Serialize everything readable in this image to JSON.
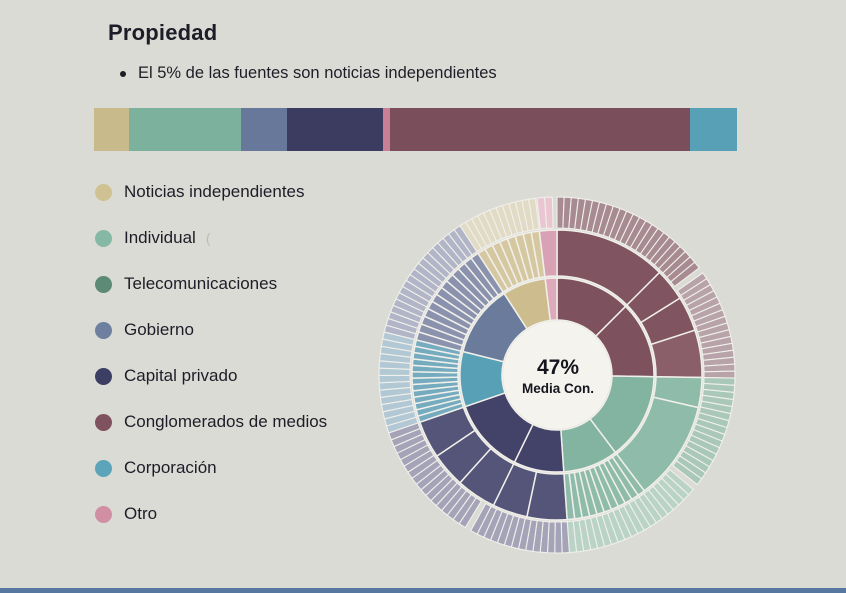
{
  "background": "#dbdbd6",
  "footer_bar_color": "#5577a0",
  "header": {
    "title": "Propiedad",
    "bullet": "El 5% de las fuentes son noticias independientes"
  },
  "legend": {
    "items": [
      {
        "label": "Noticias independientes",
        "color": "#cfc191"
      },
      {
        "label": "Individual",
        "color": "#85b9a5",
        "suffix": "("
      },
      {
        "label": "Telecomunicaciones",
        "color": "#5d8977"
      },
      {
        "label": "Gobierno",
        "color": "#6e80a0"
      },
      {
        "label": "Capital privado",
        "color": "#3d3e64"
      },
      {
        "label": "Conglomerados de medios",
        "color": "#7f525f"
      },
      {
        "label": "Corporación",
        "color": "#5ca4b9"
      },
      {
        "label": "Otro",
        "color": "#d18fa3"
      }
    ]
  },
  "chart_data": [
    {
      "type": "bar",
      "variant": "stacked-horizontal",
      "title": "Propiedad — distribución de fuentes por tipo de propiedad",
      "xlim": [
        0,
        100
      ],
      "axis": "hidden",
      "categories": [
        "Noticias independientes",
        "Individual",
        "Gobierno",
        "Capital privado",
        "Otro",
        "Conglomerados de medios",
        "Corporación"
      ],
      "values": [
        5.4,
        17.4,
        7.2,
        14.9,
        1.1,
        46.7,
        7.3
      ],
      "colors": [
        "#c9ba8b",
        "#7cb19d",
        "#67789a",
        "#3b3c5f",
        "#c97f97",
        "#7b4e5b",
        "#57a0b5"
      ]
    },
    {
      "type": "pie",
      "variant": "sunburst",
      "center_value": "47%",
      "center_label": "Media Con.",
      "hole_color": "#f4f3ee",
      "stroke_color": "#f0efea",
      "radii": {
        "hole": 54,
        "inner": [
          55,
          97
        ],
        "middle": [
          99,
          145
        ],
        "outer": [
          147,
          178
        ]
      },
      "segments": [
        {
          "name": "conglomerados-de-medios",
          "label": "Conglomerados de medios",
          "from": 0,
          "to": 91,
          "inner": {
            "color": "#7d515e",
            "groups": [
              {
                "from": 0,
                "to": 45,
                "count": 1
              },
              {
                "from": 45,
                "to": 91,
                "count": 1
              }
            ]
          },
          "middle": {
            "color": "#805460",
            "groups": [
              {
                "from": 0,
                "to": 45,
                "count": 1
              },
              {
                "from": 45,
                "to": 58,
                "count": 1
              },
              {
                "from": 58,
                "to": 72,
                "count": 1
              },
              {
                "from": 72,
                "to": 91,
                "count": 1,
                "color": "#8a5f6a"
              }
            ]
          },
          "outer": {
            "color": "#a78a92",
            "groups": [
              {
                "from": 0,
                "to": 53,
                "count": 23
              },
              {
                "from": 55,
                "to": 91,
                "count": 16,
                "color": "#b7a3a9"
              }
            ]
          }
        },
        {
          "name": "individual",
          "label": "Individual",
          "from": 91,
          "to": 176,
          "inner": {
            "color": "#83b4a1",
            "groups": [
              {
                "from": 91,
                "to": 143,
                "count": 1
              },
              {
                "from": 143,
                "to": 176,
                "count": 1
              }
            ]
          },
          "middle": {
            "color": "#8ebbaa",
            "groups": [
              {
                "from": 91,
                "to": 103,
                "count": 1
              },
              {
                "from": 103,
                "to": 143,
                "count": 1
              },
              {
                "from": 143,
                "to": 176,
                "count": 11
              }
            ]
          },
          "outer": {
            "color": "#a9c8ba",
            "groups": [
              {
                "from": 91,
                "to": 128,
                "count": 16
              },
              {
                "from": 130,
                "to": 176,
                "count": 20,
                "color": "#bad3c7"
              }
            ]
          }
        },
        {
          "name": "capital-privado",
          "label": "Capital privado",
          "from": 176,
          "to": 251,
          "inner": {
            "color": "#434268",
            "groups": [
              {
                "from": 176,
                "to": 206,
                "count": 1
              },
              {
                "from": 206,
                "to": 251,
                "count": 1
              }
            ]
          },
          "middle": {
            "color": "#555479",
            "groups": [
              {
                "from": 176,
                "to": 192,
                "count": 1
              },
              {
                "from": 192,
                "to": 206,
                "count": 1
              },
              {
                "from": 206,
                "to": 222,
                "count": 1
              },
              {
                "from": 222,
                "to": 236,
                "count": 1
              },
              {
                "from": 236,
                "to": 251,
                "count": 1
              }
            ]
          },
          "outer": {
            "color": "#a5a3b7",
            "groups": [
              {
                "from": 176,
                "to": 209,
                "count": 14
              },
              {
                "from": 211,
                "to": 251,
                "count": 17
              }
            ]
          }
        },
        {
          "name": "corporacion",
          "label": "Corporación",
          "from": 251,
          "to": 284,
          "inner": {
            "color": "#58a0b6",
            "groups": [
              {
                "from": 251,
                "to": 284,
                "count": 1
              }
            ]
          },
          "middle": {
            "color": "#74abbf",
            "groups": [
              {
                "from": 251,
                "to": 284,
                "count": 13
              }
            ]
          },
          "outer": {
            "color": "#b2c9d5",
            "groups": [
              {
                "from": 251,
                "to": 284,
                "count": 14
              }
            ]
          }
        },
        {
          "name": "gobierno",
          "label": "Gobierno",
          "from": 284,
          "to": 327,
          "inner": {
            "color": "#6a7b9b",
            "groups": [
              {
                "from": 284,
                "to": 327,
                "count": 1
              }
            ]
          },
          "middle": {
            "color": "#8a92ae",
            "groups": [
              {
                "from": 284,
                "to": 327,
                "count": 13
              }
            ]
          },
          "outer": {
            "color": "#b1b5c7",
            "groups": [
              {
                "from": 284,
                "to": 327,
                "count": 19
              }
            ]
          }
        },
        {
          "name": "noticias-independientes",
          "label": "Noticias independientes",
          "from": 327,
          "to": 353,
          "inner": {
            "color": "#cdbd8e",
            "groups": [
              {
                "from": 327,
                "to": 353,
                "count": 1
              }
            ]
          },
          "middle": {
            "color": "#d5c8a1",
            "groups": [
              {
                "from": 327,
                "to": 353,
                "count": 8
              }
            ]
          },
          "outer": {
            "color": "#e1dac4",
            "groups": [
              {
                "from": 327,
                "to": 353,
                "count": 12
              }
            ]
          }
        },
        {
          "name": "otro",
          "label": "Otro",
          "from": 353,
          "to": 360,
          "inner": {
            "color": "#dcaabb",
            "groups": [
              {
                "from": 353,
                "to": 360,
                "count": 1
              }
            ]
          },
          "middle": {
            "color": "#d9a2b4",
            "groups": [
              {
                "from": 353,
                "to": 360,
                "count": 1
              }
            ]
          },
          "outer": {
            "color": "#e9c6d2",
            "groups": [
              {
                "from": 353.5,
                "to": 358.5,
                "count": 2
              }
            ]
          }
        }
      ]
    }
  ]
}
